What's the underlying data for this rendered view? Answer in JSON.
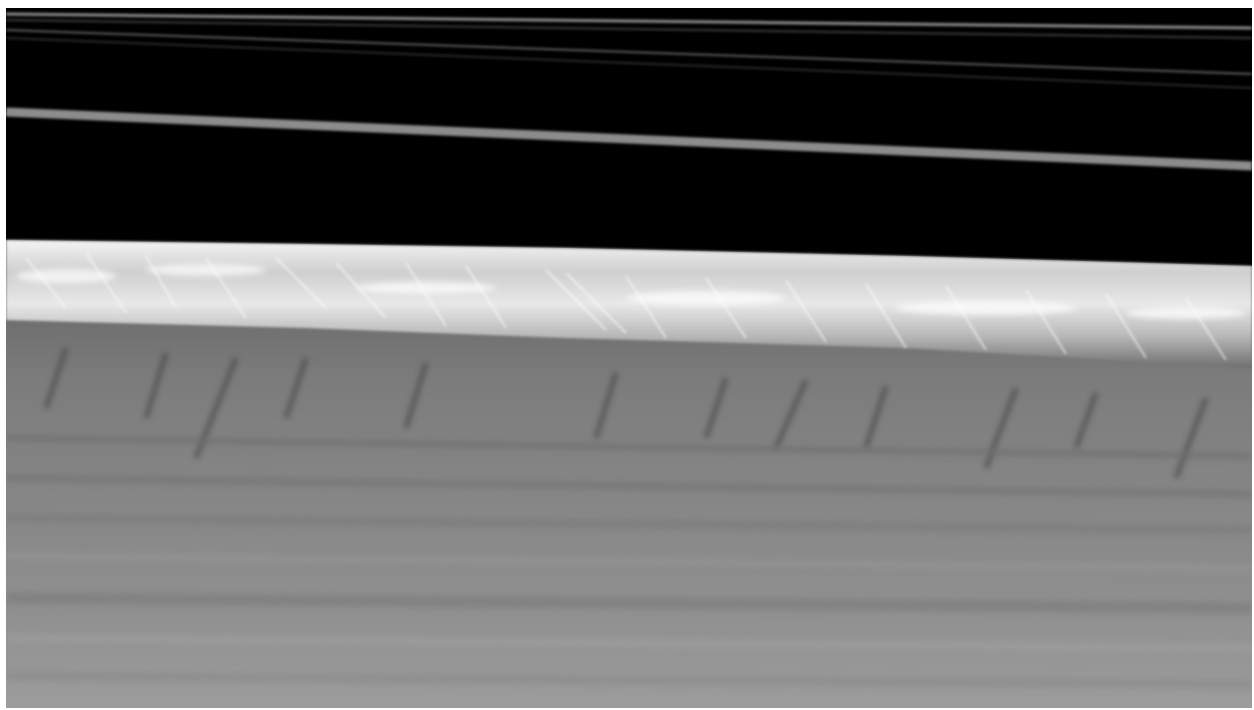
{
  "image": {
    "subject": "planetary-ring-edge",
    "colors": {
      "space": "#000000",
      "ringlet": "#9a9a9a",
      "ring_edge_highlight": "#f2f2f2",
      "ring_body": "#8e8e8e",
      "ring_shadow": "#4a4a4a"
    }
  }
}
